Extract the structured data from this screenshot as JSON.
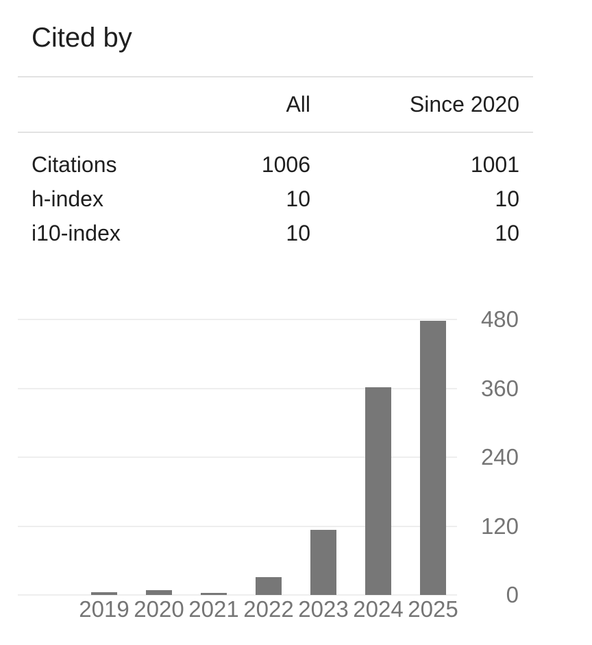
{
  "panel": {
    "title": "Cited by"
  },
  "table": {
    "headers": [
      "All",
      "Since 2020"
    ],
    "rows": [
      {
        "label": "Citations",
        "all": "1006",
        "since": "1001"
      },
      {
        "label": "h-index",
        "all": "10",
        "since": "10"
      },
      {
        "label": "i10-index",
        "all": "10",
        "since": "10"
      }
    ]
  },
  "chart_data": {
    "type": "bar",
    "title": "",
    "xlabel": "",
    "ylabel": "",
    "categories": [
      "2019",
      "2020",
      "2021",
      "2022",
      "2023",
      "2024",
      "2025"
    ],
    "values": [
      5,
      8,
      4,
      31,
      113,
      362,
      478
    ],
    "yticks": [
      480,
      360,
      240,
      120,
      0
    ],
    "ylim": [
      0,
      480
    ],
    "y_axis_side": "right",
    "grid": "horizontal",
    "legend_position": "none",
    "bar_color": "#777777",
    "axis_label_color": "#757575",
    "gridline_color": "#eeeeee"
  },
  "colors": {
    "background": "#ffffff",
    "text": "#1f1f1f",
    "divider": "#e2e2e2"
  }
}
